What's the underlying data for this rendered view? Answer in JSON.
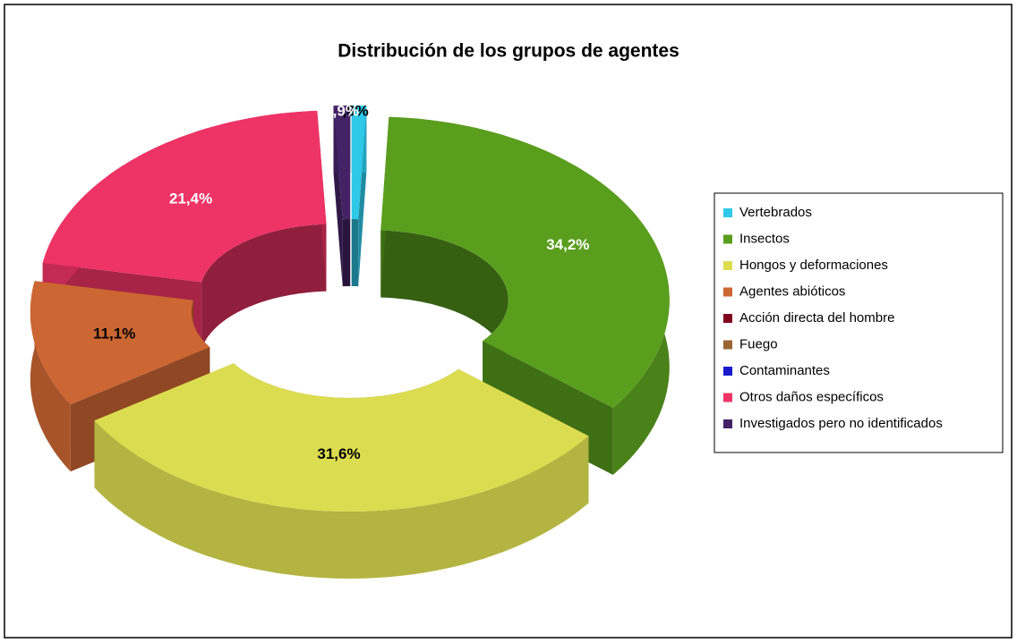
{
  "chart_data": {
    "type": "doughnut",
    "title": "Distribución de los grupos de agentes",
    "categories": [
      "Vertebrados",
      "Insectos",
      "Hongos y deformaciones",
      "Agentes abióticos",
      "Acción directa del hombre",
      "Fuego",
      "Contaminantes",
      "Otros daños específicos",
      "Investigados pero no identificados"
    ],
    "values": [
      0.8,
      34.2,
      31.6,
      11.1,
      0,
      0,
      0,
      21.4,
      0.9
    ],
    "value_labels": [
      ",8%",
      "34,2%",
      "31,6%",
      "11,1%",
      null,
      null,
      null,
      "21,4%",
      ",9%"
    ],
    "colors": [
      "#2ec8e8",
      "#5a9e1e",
      "#dcdc50",
      "#cc6633",
      "#800020",
      "#996633",
      "#1a1acc",
      "#ee3366",
      "#442266"
    ],
    "legend": "right"
  }
}
